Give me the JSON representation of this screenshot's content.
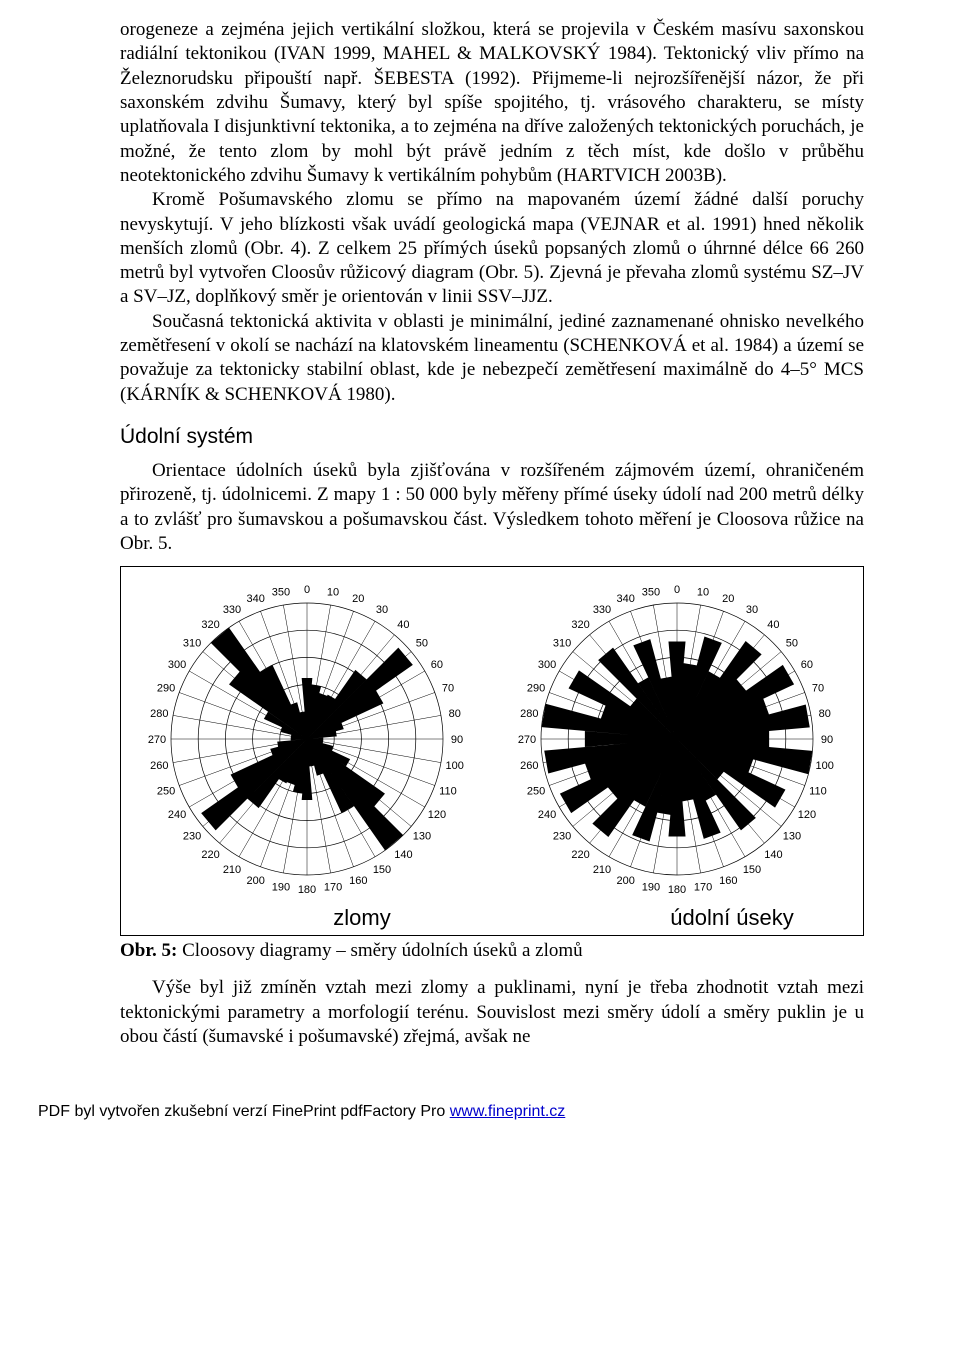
{
  "paragraphs": {
    "p1": "orogeneze a zejména jejich vertikální složkou, která se projevila v Českém masívu saxonskou radiální tektonikou (IVAN 1999, MAHEL & MALKOVSKÝ 1984). Tektonický vliv přímo na Železnorudsku připouští např. ŠEBESTA (1992). Přijmeme-li nejrozšířenější názor, že při saxonském zdvihu Šumavy, který byl spíše spojitého, tj. vrásového charakteru, se místy uplatňovala I disjunktivní tektonika, a to zejména na dříve založených tektonických poruchách, je možné, že tento zlom by mohl být právě jedním z těch míst, kde došlo v průběhu neotektonického zdvihu Šumavy k vertikálním pohybům (HARTVICH 2003B).",
    "p2": "Kromě Pošumavského zlomu se přímo na mapovaném území žádné další poruchy nevyskytují. V jeho blízkosti však uvádí geologická mapa (VEJNAR et al. 1991) hned několik menších zlomů (Obr. 4). Z celkem 25 přímých úseků popsaných zlomů o úhrnné délce 66 260 metrů byl vytvořen Cloosův růžicový diagram (Obr. 5). Zjevná je převaha zlomů systému SZ–JV a SV–JZ, doplňkový směr je orientován v linii SSV–JJZ.",
    "p3": "Současná tektonická aktivita v oblasti je minimální, jediné zaznamenané ohnisko nevelkého zemětřesení v okolí se nachází na klatovském lineamentu (SCHENKOVÁ et al. 1984) a území se považuje za tektonicky stabilní oblast, kde je nebezpečí zemětřesení maximálně do 4–5° MCS (KÁRNÍK & SCHENKOVÁ 1980).",
    "p4": "Orientace údolních úseků byla zjišťována v rozšířeném zájmovém území, ohraničeném přirozeně, tj. údolnicemi. Z mapy 1 : 50 000 byly měřeny přímé úseky údolí nad 200 metrů délky a to zvlášť pro šumavskou a pošumavskou část. Výsledkem tohoto měření je Cloosova růžice na Obr. 5.",
    "p5": "Výše byl již zmíněn vztah mezi zlomy a puklinami, nyní je třeba zhodnotit vztah mezi tektonickými parametry a morfologií terénu. Souvislost mezi směry údolí a směry puklin je u obou částí (šumavské i pošumavské) zřejmá, avšak ne"
  },
  "section_heading": "Údolní systém",
  "caption_bold": "Obr. 5:",
  "caption_rest": " Cloosovy diagramy – směry údolních úseků a zlomů",
  "footer_prefix": "PDF byl vytvořen zkušební verzí FinePrint pdfFactory Pro ",
  "footer_link": "www.fineprint.cz",
  "rose": {
    "tick_step_deg": 10,
    "num_rings": 5,
    "ring_color": "#000000",
    "spoke_color": "#000000",
    "background": "#ffffff",
    "petal_fill": "#000000",
    "left": {
      "label": "zlomy",
      "petals": [
        {
          "deg": 0,
          "r": 0.45
        },
        {
          "deg": 10,
          "r": 0.4
        },
        {
          "deg": 20,
          "r": 0.35
        },
        {
          "deg": 30,
          "r": 0.36
        },
        {
          "deg": 40,
          "r": 0.62
        },
        {
          "deg": 50,
          "r": 0.95
        },
        {
          "deg": 60,
          "r": 0.62
        },
        {
          "deg": 70,
          "r": 0.28
        },
        {
          "deg": 80,
          "r": 0.22
        },
        {
          "deg": 90,
          "r": 0.12
        },
        {
          "deg": 100,
          "r": 0.12
        },
        {
          "deg": 110,
          "r": 0.2
        },
        {
          "deg": 120,
          "r": 0.35
        },
        {
          "deg": 130,
          "r": 0.7
        },
        {
          "deg": 140,
          "r": 1.0
        },
        {
          "deg": 150,
          "r": 0.6
        },
        {
          "deg": 160,
          "r": 0.28
        },
        {
          "deg": 170,
          "r": 0.2
        },
        {
          "deg": 180,
          "r": 0.45
        },
        {
          "deg": 190,
          "r": 0.4
        },
        {
          "deg": 200,
          "r": 0.35
        },
        {
          "deg": 210,
          "r": 0.36
        },
        {
          "deg": 220,
          "r": 0.62
        },
        {
          "deg": 230,
          "r": 0.95
        },
        {
          "deg": 240,
          "r": 0.62
        },
        {
          "deg": 250,
          "r": 0.28
        },
        {
          "deg": 260,
          "r": 0.22
        },
        {
          "deg": 270,
          "r": 0.12
        },
        {
          "deg": 280,
          "r": 0.12
        },
        {
          "deg": 290,
          "r": 0.2
        },
        {
          "deg": 300,
          "r": 0.35
        },
        {
          "deg": 310,
          "r": 0.7
        },
        {
          "deg": 320,
          "r": 1.0
        },
        {
          "deg": 330,
          "r": 0.6
        },
        {
          "deg": 340,
          "r": 0.28
        },
        {
          "deg": 350,
          "r": 0.2
        }
      ]
    },
    "right": {
      "label": "údolní úseky",
      "petals": [
        {
          "deg": 0,
          "r": 0.72
        },
        {
          "deg": 10,
          "r": 0.56
        },
        {
          "deg": 20,
          "r": 0.78
        },
        {
          "deg": 30,
          "r": 0.55
        },
        {
          "deg": 40,
          "r": 0.88
        },
        {
          "deg": 50,
          "r": 0.62
        },
        {
          "deg": 60,
          "r": 0.95
        },
        {
          "deg": 70,
          "r": 0.7
        },
        {
          "deg": 80,
          "r": 0.98
        },
        {
          "deg": 90,
          "r": 0.68
        },
        {
          "deg": 100,
          "r": 1.0
        },
        {
          "deg": 110,
          "r": 0.58
        },
        {
          "deg": 120,
          "r": 0.88
        },
        {
          "deg": 130,
          "r": 0.42
        },
        {
          "deg": 140,
          "r": 0.82
        },
        {
          "deg": 150,
          "r": 0.5
        },
        {
          "deg": 160,
          "r": 0.76
        },
        {
          "deg": 170,
          "r": 0.46
        },
        {
          "deg": 180,
          "r": 0.72
        },
        {
          "deg": 190,
          "r": 0.56
        },
        {
          "deg": 200,
          "r": 0.78
        },
        {
          "deg": 210,
          "r": 0.55
        },
        {
          "deg": 220,
          "r": 0.88
        },
        {
          "deg": 230,
          "r": 0.62
        },
        {
          "deg": 240,
          "r": 0.95
        },
        {
          "deg": 250,
          "r": 0.7
        },
        {
          "deg": 260,
          "r": 0.98
        },
        {
          "deg": 270,
          "r": 0.68
        },
        {
          "deg": 280,
          "r": 1.0
        },
        {
          "deg": 290,
          "r": 0.58
        },
        {
          "deg": 300,
          "r": 0.88
        },
        {
          "deg": 310,
          "r": 0.42
        },
        {
          "deg": 320,
          "r": 0.82
        },
        {
          "deg": 330,
          "r": 0.5
        },
        {
          "deg": 340,
          "r": 0.76
        },
        {
          "deg": 350,
          "r": 0.46
        }
      ]
    }
  }
}
